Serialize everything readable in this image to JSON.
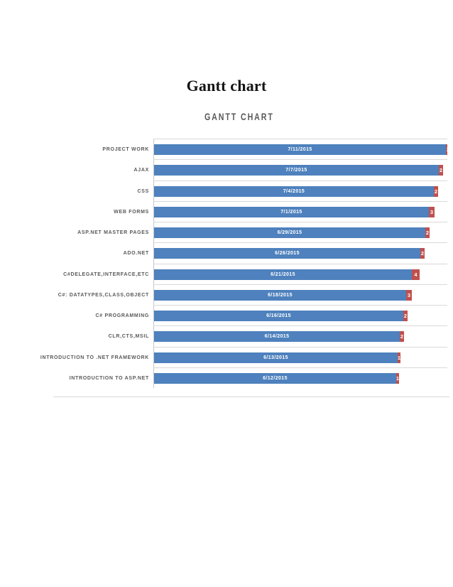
{
  "page": {
    "title": "Gantt chart"
  },
  "colors": {
    "bar_blue": "#4e81bd",
    "bar_red": "#c0504d",
    "gridline": "#d9d9d9",
    "axis_line": "#c6c6c6",
    "label_gray": "#595959",
    "date_text": "#ffffff"
  },
  "chart_data": {
    "type": "bar",
    "subtype": "horizontal-stacked-gantt",
    "title": "GANTT CHART",
    "legend": "none",
    "gridlines": "category-boundaries",
    "categories": [
      "PROJECT WORK",
      "AJAX",
      "CSS",
      "WEB FORMS",
      "ASP.NET MASTER PAGES",
      "ADO.NET",
      "C#DELEGATE,INTERFACE,ETC",
      "C#: DATATYPES,CLASS,OBJECT",
      "C# PROGRAMMING",
      "CLR,CTS,MSIL",
      "INTRODUCTION TO .NET FRAMEWORK",
      "INTRODUCTION TO ASP.NET"
    ],
    "series": [
      {
        "name": "start-date (blue segment, label shown on bar)",
        "color": "#4e81bd",
        "labels": [
          "7/11/2015",
          "7/7/2015",
          "7/4/2015",
          "7/1/2015",
          "6/29/2015",
          "6/26/2015",
          "6/21/2015",
          "6/18/2015",
          "6/16/2015",
          "6/14/2015",
          "6/13/2015",
          "6/12/2015"
        ]
      },
      {
        "name": "duration-days (red segment, value shown on bar)",
        "color": "#c0504d",
        "values": [
          2,
          2,
          2,
          3,
          2,
          2,
          4,
          3,
          2,
          2,
          1,
          1
        ]
      }
    ],
    "tasks": [
      {
        "label": "PROJECT WORK",
        "start": "7/11/2015",
        "duration": 2
      },
      {
        "label": "AJAX",
        "start": "7/7/2015",
        "duration": 2
      },
      {
        "label": "CSS",
        "start": "7/4/2015",
        "duration": 2
      },
      {
        "label": "WEB FORMS",
        "start": "7/1/2015",
        "duration": 3
      },
      {
        "label": "ASP.NET MASTER PAGES",
        "start": "6/29/2015",
        "duration": 2
      },
      {
        "label": "ADO.NET",
        "start": "6/26/2015",
        "duration": 2
      },
      {
        "label": "C#DELEGATE,INTERFACE,ETC",
        "start": "6/21/2015",
        "duration": 4
      },
      {
        "label": "C#: DATATYPES,CLASS,OBJECT",
        "start": "6/18/2015",
        "duration": 3
      },
      {
        "label": "C# PROGRAMMING",
        "start": "6/16/2015",
        "duration": 2
      },
      {
        "label": "CLR,CTS,MSIL",
        "start": "6/14/2015",
        "duration": 2
      },
      {
        "label": "INTRODUCTION TO .NET FRAMEWORK",
        "start": "6/13/2015",
        "duration": 1
      },
      {
        "label": "INTRODUCTION TO ASP.NET",
        "start": "6/12/2015",
        "duration": 1
      }
    ]
  }
}
